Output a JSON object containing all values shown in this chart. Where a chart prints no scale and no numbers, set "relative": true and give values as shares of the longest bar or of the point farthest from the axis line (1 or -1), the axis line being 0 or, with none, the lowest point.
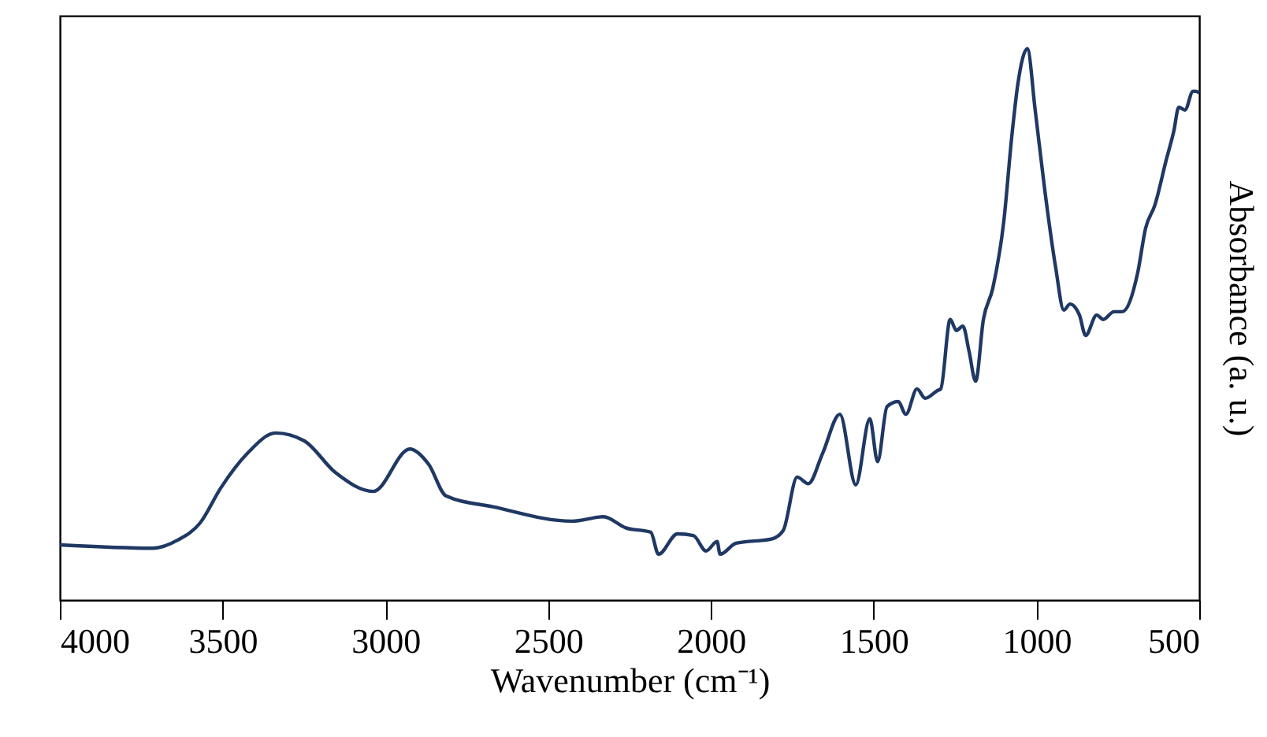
{
  "chart_data": {
    "type": "line",
    "xlabel": "Wavenumber (cm⁻¹)",
    "ylabel": "Absorbance (a. u.)",
    "relative": true,
    "xlim": [
      4000,
      500
    ],
    "xticks": [
      4000,
      3500,
      3000,
      2500,
      2000,
      1500,
      1000,
      500
    ],
    "grid": false,
    "marker": "none",
    "line_style": "solid",
    "series": [
      {
        "color": "#1f3864",
        "x": [
          4000,
          3714,
          3637,
          3569,
          3506,
          3424,
          3337,
          3250,
          3153,
          3037,
          2925,
          2867,
          2814,
          2669,
          2427,
          2330,
          2262,
          2185,
          2161,
          2103,
          2054,
          2015,
          1981,
          1972,
          1923,
          1812,
          1778,
          1735,
          1701,
          1657,
          1604,
          1555,
          1512,
          1488,
          1459,
          1425,
          1401,
          1367,
          1342,
          1304,
          1294,
          1265,
          1246,
          1226,
          1207,
          1187,
          1163,
          1134,
          1100,
          1076,
          1057,
          1028,
          1004,
          975,
          941,
          916,
          897,
          868,
          849,
          815,
          795,
          762,
          737,
          689,
          665,
          636,
          602,
          578,
          563,
          544,
          519,
          510,
          500
        ],
        "values": [
          0.1,
          0.094,
          0.109,
          0.14,
          0.203,
          0.266,
          0.303,
          0.289,
          0.231,
          0.197,
          0.274,
          0.246,
          0.189,
          0.169,
          0.143,
          0.151,
          0.131,
          0.123,
          0.083,
          0.12,
          0.117,
          0.089,
          0.106,
          0.083,
          0.103,
          0.111,
          0.126,
          0.223,
          0.211,
          0.266,
          0.337,
          0.209,
          0.329,
          0.251,
          0.351,
          0.36,
          0.337,
          0.383,
          0.366,
          0.38,
          0.383,
          0.509,
          0.489,
          0.497,
          0.451,
          0.397,
          0.509,
          0.566,
          0.689,
          0.84,
          0.937,
          1.0,
          0.889,
          0.746,
          0.603,
          0.526,
          0.537,
          0.517,
          0.48,
          0.517,
          0.509,
          0.523,
          0.523,
          0.594,
          0.674,
          0.717,
          0.797,
          0.851,
          0.894,
          0.889,
          0.923,
          0.923,
          0.92
        ]
      }
    ]
  }
}
